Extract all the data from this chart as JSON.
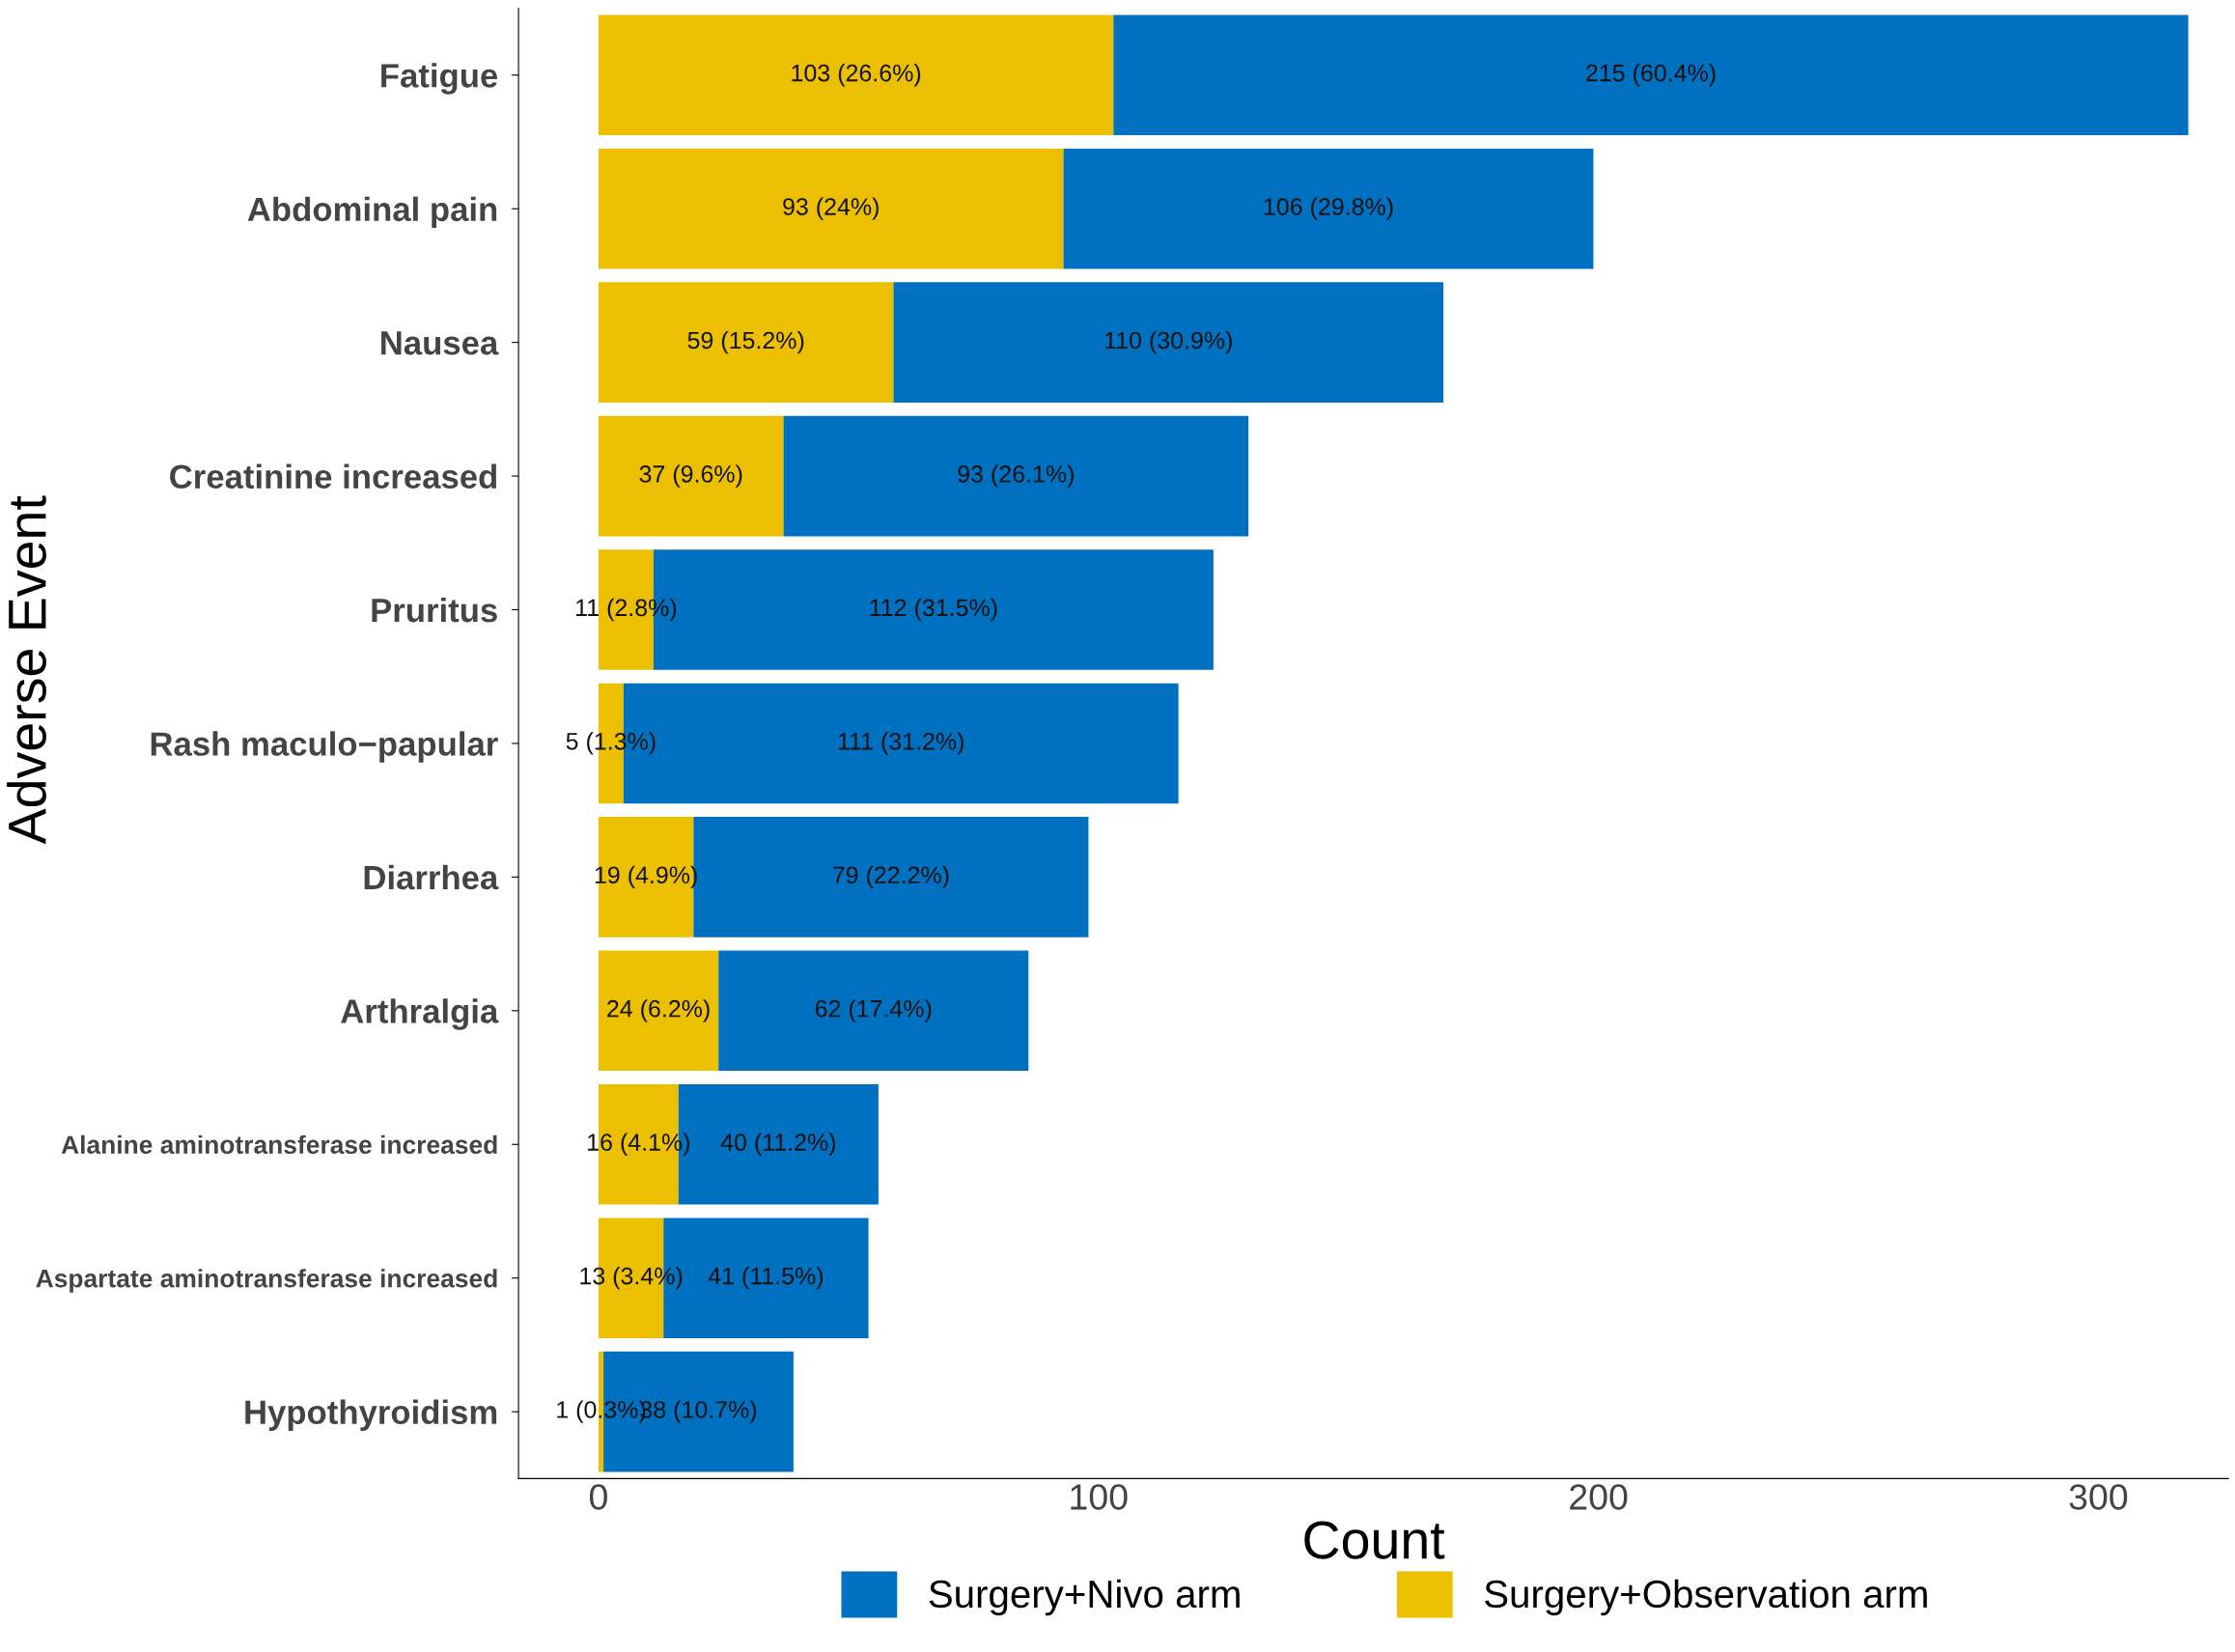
{
  "chart_data": {
    "type": "bar",
    "orientation": "horizontal",
    "stacked": true,
    "xlabel": "Count",
    "ylabel": "Adverse Event",
    "categories": [
      "Fatigue",
      "Abdominal pain",
      "Nausea",
      "Creatinine increased",
      "Pruritus",
      "Rash maculo−papular",
      "Diarrhea",
      "Arthralgia",
      "Alanine aminotransferase increased",
      "Aspartate aminotransferase increased",
      "Hypothyroidism"
    ],
    "series": [
      {
        "name": "Surgery+Observation arm",
        "color": "#ecc000",
        "values": [
          103,
          93,
          59,
          37,
          11,
          5,
          19,
          24,
          16,
          13,
          1
        ],
        "value_labels": [
          "103 (26.6%)",
          "93 (24%)",
          "59 (15.2%)",
          "37 (9.6%)",
          "11 (2.8%)",
          "5 (1.3%)",
          "19 (4.9%)",
          "24 (6.2%)",
          "16 (4.1%)",
          "13 (3.4%)",
          "1 (0.3%)"
        ]
      },
      {
        "name": "Surgery+Nivo arm",
        "color": "#0070c0",
        "values": [
          215,
          106,
          110,
          93,
          112,
          111,
          79,
          62,
          40,
          41,
          38
        ],
        "value_labels": [
          "215 (60.4%)",
          "106 (29.8%)",
          "110 (30.9%)",
          "93 (26.1%)",
          "112 (31.5%)",
          "111 (31.2%)",
          "79 (22.2%)",
          "62 (17.4%)",
          "40 (11.2%)",
          "41 (11.5%)",
          "38 (10.7%)"
        ]
      }
    ],
    "xlim": [
      -16,
      326
    ],
    "xticks": [
      0,
      100,
      200,
      300
    ],
    "grid": false,
    "legend": "bottom"
  }
}
